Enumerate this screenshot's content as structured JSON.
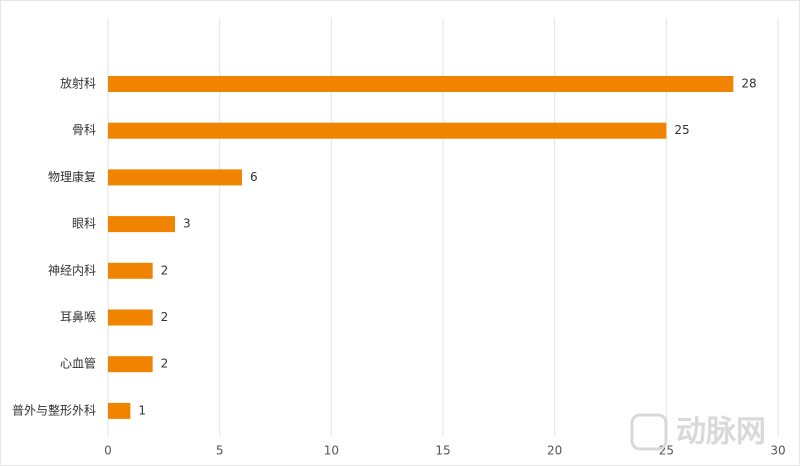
{
  "chart_data": {
    "type": "hbar",
    "categories": [
      "放射科",
      "骨科",
      "物理康复",
      "眼科",
      "神经内科",
      "耳鼻喉",
      "心血管",
      "普外与整形外科"
    ],
    "values": [
      28,
      25,
      6,
      3,
      2,
      2,
      2,
      1
    ],
    "color": "#f08300",
    "xlim": [
      0,
      30
    ],
    "xticks": [
      0,
      5,
      10,
      15,
      20,
      25,
      30
    ],
    "grid": true,
    "watermark": "动脉网"
  }
}
